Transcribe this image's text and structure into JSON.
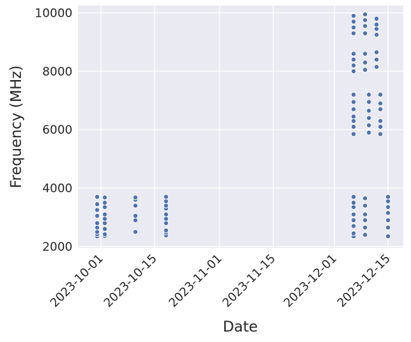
{
  "chart_data": {
    "type": "scatter",
    "title": "",
    "xlabel": "Date",
    "ylabel": "Frequency (MHz)",
    "xlim": [
      "2023-09-25",
      "2023-12-19"
    ],
    "ylim": [
      1950,
      10250
    ],
    "grid": true,
    "legend": "none",
    "x_ticks": [
      "2023-10-01",
      "2023-10-15",
      "2023-11-01",
      "2023-11-15",
      "2023-12-01",
      "2023-12-15"
    ],
    "y_ticks": [
      2000,
      4000,
      6000,
      8000,
      10000
    ],
    "colors": {
      "point": "#4c72b0",
      "point_edge": "#ffffff",
      "background": "#eaeaf2",
      "grid": "#ffffff"
    },
    "series": [
      {
        "points": [
          {
            "x": "2023-09-30",
            "y": 2350
          },
          {
            "x": "2023-09-30",
            "y": 2420
          },
          {
            "x": "2023-09-30",
            "y": 2500
          },
          {
            "x": "2023-09-30",
            "y": 2650
          },
          {
            "x": "2023-09-30",
            "y": 2800
          },
          {
            "x": "2023-09-30",
            "y": 3050
          },
          {
            "x": "2023-09-30",
            "y": 3250
          },
          {
            "x": "2023-09-30",
            "y": 3450
          },
          {
            "x": "2023-09-30",
            "y": 3700
          },
          {
            "x": "2023-10-02",
            "y": 2360
          },
          {
            "x": "2023-10-02",
            "y": 2420
          },
          {
            "x": "2023-10-02",
            "y": 2600
          },
          {
            "x": "2023-10-02",
            "y": 2800
          },
          {
            "x": "2023-10-02",
            "y": 2950
          },
          {
            "x": "2023-10-02",
            "y": 3100
          },
          {
            "x": "2023-10-02",
            "y": 3350
          },
          {
            "x": "2023-10-02",
            "y": 3500
          },
          {
            "x": "2023-10-02",
            "y": 3680
          },
          {
            "x": "2023-10-10",
            "y": 2500
          },
          {
            "x": "2023-10-10",
            "y": 2900
          },
          {
            "x": "2023-10-10",
            "y": 3050
          },
          {
            "x": "2023-10-10",
            "y": 3400
          },
          {
            "x": "2023-10-10",
            "y": 3600
          },
          {
            "x": "2023-10-10",
            "y": 3680
          },
          {
            "x": "2023-10-18",
            "y": 2380
          },
          {
            "x": "2023-10-18",
            "y": 2480
          },
          {
            "x": "2023-10-18",
            "y": 2550
          },
          {
            "x": "2023-10-18",
            "y": 2800
          },
          {
            "x": "2023-10-18",
            "y": 2950
          },
          {
            "x": "2023-10-18",
            "y": 3100
          },
          {
            "x": "2023-10-18",
            "y": 3300
          },
          {
            "x": "2023-10-18",
            "y": 3400
          },
          {
            "x": "2023-10-18",
            "y": 3550
          },
          {
            "x": "2023-10-18",
            "y": 3700
          },
          {
            "x": "2023-12-06",
            "y": 2350
          },
          {
            "x": "2023-12-06",
            "y": 2450
          },
          {
            "x": "2023-12-06",
            "y": 2700
          },
          {
            "x": "2023-12-06",
            "y": 2900
          },
          {
            "x": "2023-12-06",
            "y": 3100
          },
          {
            "x": "2023-12-06",
            "y": 3350
          },
          {
            "x": "2023-12-06",
            "y": 3500
          },
          {
            "x": "2023-12-06",
            "y": 3700
          },
          {
            "x": "2023-12-06",
            "y": 5850
          },
          {
            "x": "2023-12-06",
            "y": 6100
          },
          {
            "x": "2023-12-06",
            "y": 6300
          },
          {
            "x": "2023-12-06",
            "y": 6450
          },
          {
            "x": "2023-12-06",
            "y": 6700
          },
          {
            "x": "2023-12-06",
            "y": 6950
          },
          {
            "x": "2023-12-06",
            "y": 7200
          },
          {
            "x": "2023-12-06",
            "y": 8000
          },
          {
            "x": "2023-12-06",
            "y": 8200
          },
          {
            "x": "2023-12-06",
            "y": 8400
          },
          {
            "x": "2023-12-06",
            "y": 8600
          },
          {
            "x": "2023-12-06",
            "y": 9300
          },
          {
            "x": "2023-12-06",
            "y": 9500
          },
          {
            "x": "2023-12-06",
            "y": 9700
          },
          {
            "x": "2023-12-06",
            "y": 9900
          },
          {
            "x": "2023-12-09",
            "y": 2400
          },
          {
            "x": "2023-12-09",
            "y": 2650
          },
          {
            "x": "2023-12-09",
            "y": 2900
          },
          {
            "x": "2023-12-09",
            "y": 3100
          },
          {
            "x": "2023-12-09",
            "y": 3400
          },
          {
            "x": "2023-12-09",
            "y": 3650
          },
          {
            "x": "2023-12-09",
            "y": 8050
          },
          {
            "x": "2023-12-09",
            "y": 8300
          },
          {
            "x": "2023-12-09",
            "y": 8600
          },
          {
            "x": "2023-12-09",
            "y": 9300
          },
          {
            "x": "2023-12-09",
            "y": 9550
          },
          {
            "x": "2023-12-09",
            "y": 9750
          },
          {
            "x": "2023-12-09",
            "y": 9950
          },
          {
            "x": "2023-12-10",
            "y": 5900
          },
          {
            "x": "2023-12-10",
            "y": 6150
          },
          {
            "x": "2023-12-10",
            "y": 6400
          },
          {
            "x": "2023-12-10",
            "y": 6650
          },
          {
            "x": "2023-12-10",
            "y": 6950
          },
          {
            "x": "2023-12-10",
            "y": 7200
          },
          {
            "x": "2023-12-13",
            "y": 5850
          },
          {
            "x": "2023-12-13",
            "y": 6100
          },
          {
            "x": "2023-12-13",
            "y": 6300
          },
          {
            "x": "2023-12-13",
            "y": 6700
          },
          {
            "x": "2023-12-13",
            "y": 6900
          },
          {
            "x": "2023-12-13",
            "y": 7200
          },
          {
            "x": "2023-12-12",
            "y": 8150
          },
          {
            "x": "2023-12-12",
            "y": 8400
          },
          {
            "x": "2023-12-12",
            "y": 8650
          },
          {
            "x": "2023-12-12",
            "y": 9250
          },
          {
            "x": "2023-12-12",
            "y": 9450
          },
          {
            "x": "2023-12-12",
            "y": 9600
          },
          {
            "x": "2023-12-12",
            "y": 9800
          },
          {
            "x": "2023-12-15",
            "y": 2350
          },
          {
            "x": "2023-12-15",
            "y": 2650
          },
          {
            "x": "2023-12-15",
            "y": 2900
          },
          {
            "x": "2023-12-15",
            "y": 3150
          },
          {
            "x": "2023-12-15",
            "y": 3350
          },
          {
            "x": "2023-12-15",
            "y": 3550
          },
          {
            "x": "2023-12-15",
            "y": 3700
          }
        ]
      }
    ]
  }
}
